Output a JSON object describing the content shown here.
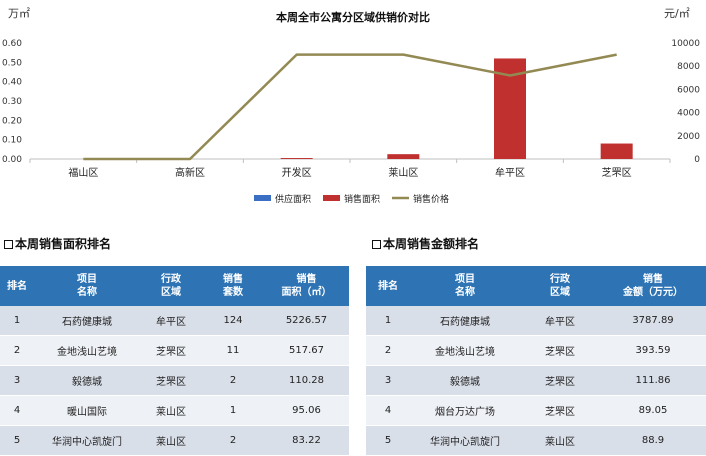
{
  "chart_data": {
    "type": "bar+line",
    "title": "本周全市公寓分区域供销价对比",
    "y_left_unit": "万㎡",
    "y_right_unit": "元/㎡",
    "categories": [
      "福山区",
      "高新区",
      "开发区",
      "莱山区",
      "牟平区",
      "芝罘区"
    ],
    "y_left_ticks": [
      "0.00",
      "0.10",
      "0.20",
      "0.30",
      "0.40",
      "0.50",
      "0.60"
    ],
    "y_right_ticks": [
      "0",
      "2000",
      "4000",
      "6000",
      "8000",
      "10000"
    ],
    "ylim_left": [
      0,
      0.6
    ],
    "ylim_right": [
      0,
      10000
    ],
    "series": [
      {
        "name": "供应面积",
        "type": "bar",
        "axis": "left",
        "color": "#3a6fc4",
        "values": [
          0,
          0,
          0,
          0,
          0,
          0
        ]
      },
      {
        "name": "销售面积",
        "type": "bar",
        "axis": "left",
        "color": "#c0302f",
        "values": [
          0,
          0,
          0.005,
          0.025,
          0.52,
          0.08
        ]
      },
      {
        "name": "销售价格",
        "type": "line",
        "axis": "right",
        "color": "#938953",
        "values": [
          0,
          0,
          9000,
          9000,
          7200,
          9000
        ]
      }
    ],
    "legend_position": "bottom"
  },
  "table_area": {
    "title": "本周销售面积排名",
    "headers": [
      [
        "排名"
      ],
      [
        "项目",
        "名称"
      ],
      [
        "行政",
        "区域"
      ],
      [
        "销售",
        "套数"
      ],
      [
        "销售",
        "面积（㎡）"
      ]
    ],
    "rows": [
      [
        "1",
        "石药健康城",
        "牟平区",
        "124",
        "5226.57"
      ],
      [
        "2",
        "金地浅山艺境",
        "芝罘区",
        "11",
        "517.67"
      ],
      [
        "3",
        "毅德城",
        "芝罘区",
        "2",
        "110.28"
      ],
      [
        "4",
        "暖山国际",
        "莱山区",
        "1",
        "95.06"
      ],
      [
        "5",
        "华润中心凯旋门",
        "莱山区",
        "2",
        "83.22"
      ]
    ]
  },
  "table_amount": {
    "title": "本周销售金额排名",
    "headers": [
      [
        "排名"
      ],
      [
        "项目",
        "名称"
      ],
      [
        "行政",
        "区域"
      ],
      [
        "销售",
        "金额（万元）"
      ]
    ],
    "rows": [
      [
        "1",
        "石药健康城",
        "牟平区",
        "3787.89"
      ],
      [
        "2",
        "金地浅山艺境",
        "芝罘区",
        "393.59"
      ],
      [
        "3",
        "毅德城",
        "芝罘区",
        "111.86"
      ],
      [
        "4",
        "烟台万达广场",
        "芝罘区",
        "89.05"
      ],
      [
        "5",
        "华润中心凯旋门",
        "莱山区",
        "88.9"
      ]
    ]
  }
}
